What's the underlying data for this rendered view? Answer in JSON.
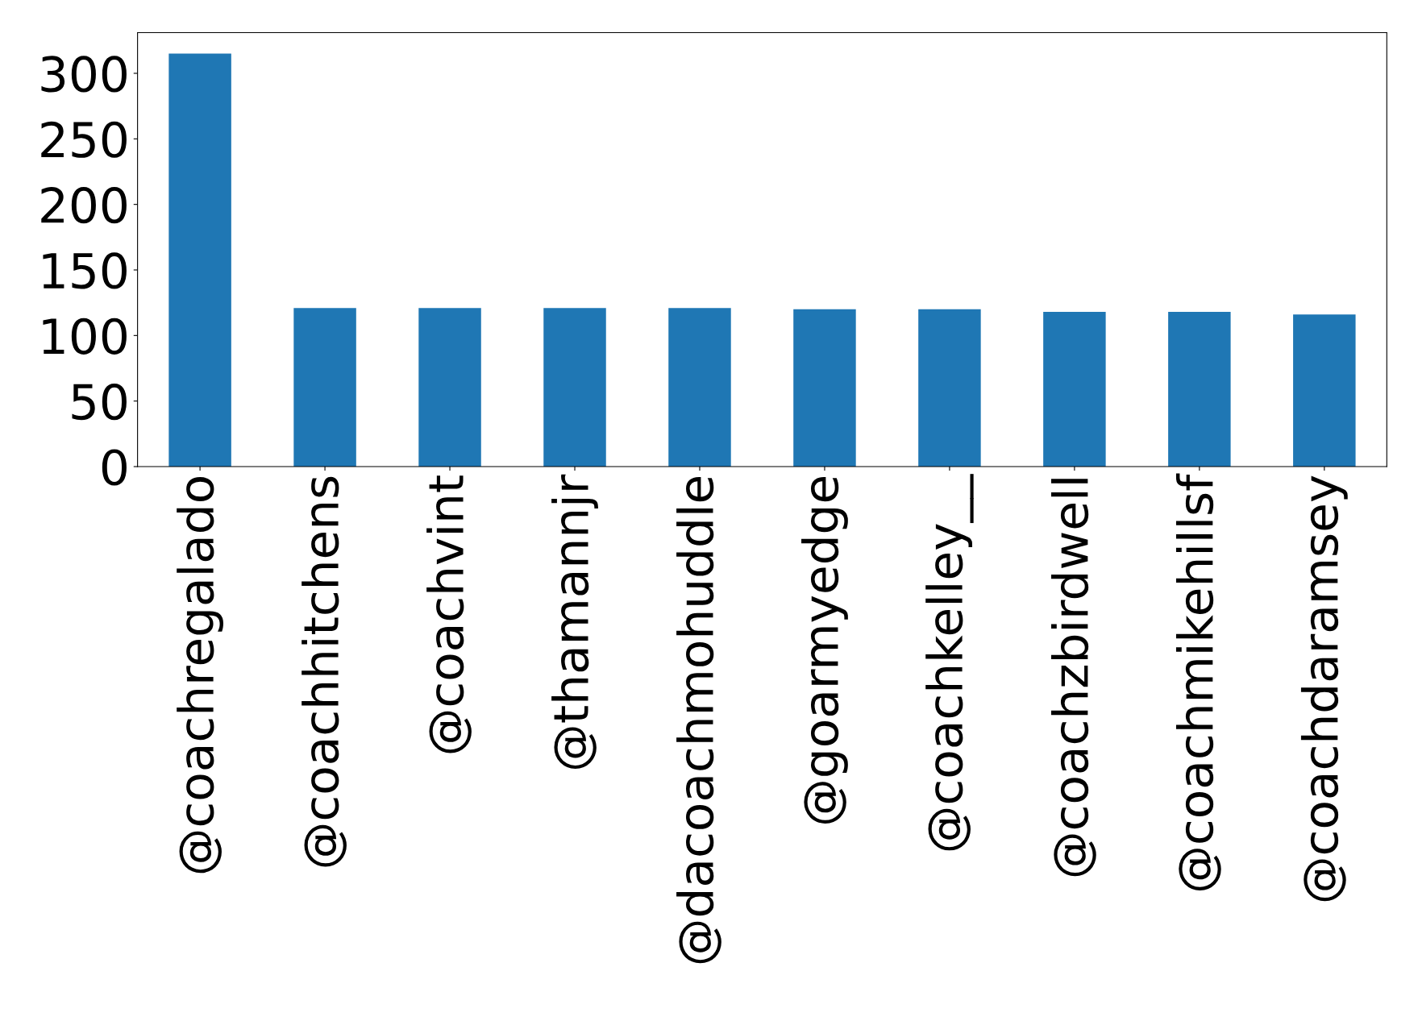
{
  "chart_data": {
    "type": "bar",
    "categories": [
      "@coachregalado",
      "@coachhitchens",
      "@coachvint",
      "@thamannjr",
      "@dacoachmohuddle",
      "@goarmyedge",
      "@coachkelley__",
      "@coachzbirdwell",
      "@coachmikehillsf",
      "@coachdaramsey"
    ],
    "values": [
      315,
      121,
      121,
      121,
      121,
      120,
      120,
      118,
      118,
      116
    ],
    "color": "#1f77b4",
    "ylim": [
      0,
      331
    ],
    "yticks": [
      0,
      50,
      100,
      150,
      200,
      250,
      300
    ],
    "grid": false,
    "legend": false
  }
}
